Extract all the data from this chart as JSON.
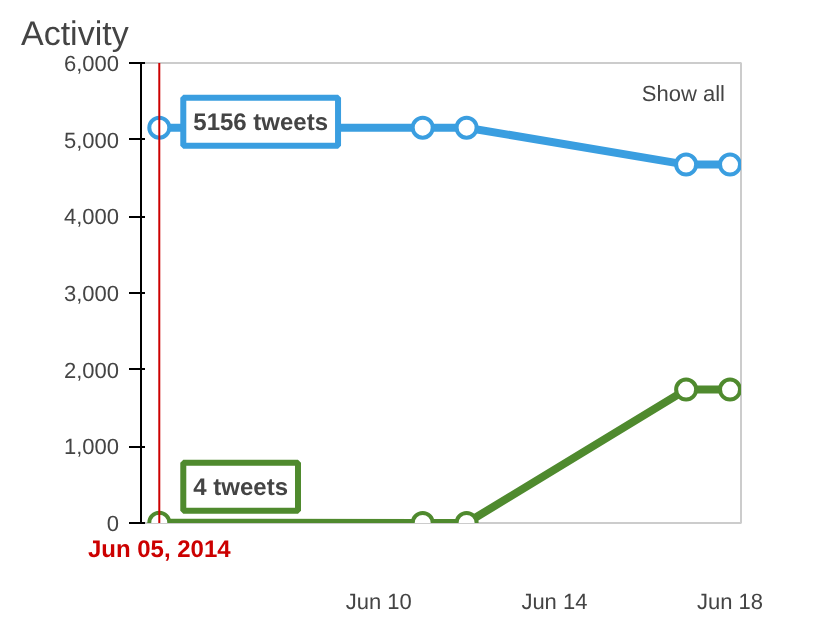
{
  "chart_data": {
    "type": "line",
    "title": "Activity",
    "x": [
      "2014-06-05",
      "2014-06-11",
      "2014-06-12",
      "2014-06-17",
      "2014-06-18"
    ],
    "series": [
      {
        "color": "#3a9ee0",
        "values": [
          5156,
          5156,
          5156,
          4675,
          4675
        ]
      },
      {
        "color": "#4f8a2e",
        "values": [
          4,
          0,
          0,
          1740,
          1740
        ]
      }
    ],
    "xlim": [
      "2014-06-04T14:00",
      "2014-06-18T06:00"
    ],
    "xticks": [
      {
        "value": "2014-06-10",
        "label": "Jun 10"
      },
      {
        "value": "2014-06-14",
        "label": "Jun 14"
      },
      {
        "value": "2014-06-18",
        "label": "Jun 18"
      }
    ],
    "ylim": [
      0,
      6000
    ],
    "yticks": [
      {
        "value": 0,
        "label": "0"
      },
      {
        "value": 1000,
        "label": "1,000"
      },
      {
        "value": 2000,
        "label": "2,000"
      },
      {
        "value": 3000,
        "label": "3,000"
      },
      {
        "value": 4000,
        "label": "4,000"
      },
      {
        "value": 5000,
        "label": "5,000"
      },
      {
        "value": 6000,
        "label": "6,000"
      }
    ],
    "grid": false,
    "marker": "circle",
    "line_style": "solid",
    "ref_lines": [
      {
        "axis": "x",
        "value": "2014-06-05",
        "label": "Jun 05, 2014",
        "color": "#cc0000"
      }
    ],
    "annotations": [
      "Show all",
      {
        "text": "5156 tweets",
        "x": "2014-06-05",
        "y": 5156
      },
      {
        "text": "4 tweets",
        "x": "2014-06-05",
        "y": 4
      }
    ]
  }
}
